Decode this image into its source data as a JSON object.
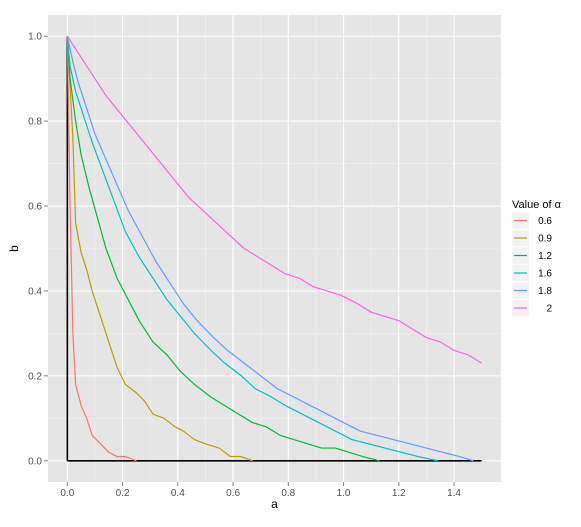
{
  "chart_data": {
    "type": "line",
    "title": "",
    "xlabel": "a",
    "ylabel": "b",
    "xlim": [
      -0.07,
      1.57
    ],
    "ylim": [
      -0.05,
      1.05
    ],
    "x_ticks": [
      0.0,
      0.2,
      0.4,
      0.6,
      0.8,
      1.0,
      1.2,
      1.4
    ],
    "x_tick_labels": [
      "0.0",
      "0.2",
      "0.4",
      "0.6",
      "0.8",
      "1.0",
      "1.2",
      "1.4"
    ],
    "y_ticks": [
      0.0,
      0.2,
      0.4,
      0.6,
      0.8,
      1.0
    ],
    "y_tick_labels": [
      "0.0",
      "0.2",
      "0.4",
      "0.6",
      "0.8",
      "1.0"
    ],
    "grid": true,
    "legend": {
      "title": "Value of α",
      "position": "right"
    },
    "reference_lines": [
      {
        "x": [
          0,
          0
        ],
        "y": [
          0,
          1
        ],
        "color": "#000000"
      },
      {
        "x": [
          0,
          1.5
        ],
        "y": [
          0,
          0
        ],
        "color": "#000000"
      }
    ],
    "series": [
      {
        "name": "0.6",
        "color": "#F8766D",
        "x": [
          0,
          0.01,
          0.02,
          0.03,
          0.05,
          0.07,
          0.09,
          0.12,
          0.15,
          0.18,
          0.21,
          0.25
        ],
        "y": [
          1.0,
          0.6,
          0.3,
          0.18,
          0.13,
          0.1,
          0.06,
          0.04,
          0.02,
          0.01,
          0.01,
          0.0
        ]
      },
      {
        "name": "0.9",
        "color": "#B79F00",
        "x": [
          0,
          0.02,
          0.03,
          0.05,
          0.07,
          0.09,
          0.12,
          0.15,
          0.18,
          0.21,
          0.25,
          0.28,
          0.31,
          0.35,
          0.39,
          0.42,
          0.46,
          0.5,
          0.55,
          0.59,
          0.63,
          0.67
        ],
        "y": [
          1.0,
          0.76,
          0.56,
          0.49,
          0.45,
          0.4,
          0.34,
          0.28,
          0.22,
          0.18,
          0.16,
          0.14,
          0.11,
          0.1,
          0.08,
          0.07,
          0.05,
          0.04,
          0.03,
          0.01,
          0.01,
          0.0
        ]
      },
      {
        "name": "1.2",
        "color": "#00BA38",
        "x": [
          0,
          0.01,
          0.03,
          0.05,
          0.08,
          0.11,
          0.14,
          0.18,
          0.22,
          0.26,
          0.31,
          0.36,
          0.41,
          0.46,
          0.52,
          0.57,
          0.62,
          0.67,
          0.72,
          0.77,
          0.82,
          0.87,
          0.92,
          0.97,
          1.02,
          1.07,
          1.13
        ],
        "y": [
          1.0,
          0.9,
          0.8,
          0.72,
          0.64,
          0.57,
          0.5,
          0.43,
          0.38,
          0.33,
          0.28,
          0.25,
          0.21,
          0.18,
          0.15,
          0.13,
          0.11,
          0.09,
          0.08,
          0.06,
          0.05,
          0.04,
          0.03,
          0.03,
          0.02,
          0.01,
          0.0
        ]
      },
      {
        "name": "1.6",
        "color": "#00BFC4",
        "x": [
          0,
          0.01,
          0.03,
          0.06,
          0.09,
          0.13,
          0.17,
          0.21,
          0.26,
          0.31,
          0.36,
          0.41,
          0.46,
          0.52,
          0.57,
          0.63,
          0.68,
          0.74,
          0.79,
          0.85,
          0.91,
          0.97,
          1.03,
          1.09,
          1.15,
          1.21,
          1.27,
          1.34
        ],
        "y": [
          1.0,
          0.93,
          0.87,
          0.81,
          0.75,
          0.68,
          0.61,
          0.54,
          0.48,
          0.43,
          0.38,
          0.34,
          0.3,
          0.26,
          0.23,
          0.2,
          0.17,
          0.15,
          0.13,
          0.11,
          0.09,
          0.07,
          0.05,
          0.04,
          0.03,
          0.02,
          0.01,
          0.0
        ]
      },
      {
        "name": "1.8",
        "color": "#619CFF",
        "x": [
          0,
          0.02,
          0.04,
          0.07,
          0.1,
          0.14,
          0.18,
          0.22,
          0.27,
          0.32,
          0.37,
          0.42,
          0.47,
          0.53,
          0.58,
          0.64,
          0.7,
          0.76,
          0.82,
          0.88,
          0.94,
          1.0,
          1.06,
          1.12,
          1.18,
          1.24,
          1.3,
          1.36,
          1.42,
          1.47
        ],
        "y": [
          1.0,
          0.94,
          0.89,
          0.83,
          0.77,
          0.71,
          0.65,
          0.59,
          0.53,
          0.47,
          0.42,
          0.37,
          0.33,
          0.29,
          0.26,
          0.23,
          0.2,
          0.17,
          0.15,
          0.13,
          0.11,
          0.09,
          0.07,
          0.06,
          0.05,
          0.04,
          0.03,
          0.02,
          0.01,
          0.0
        ]
      },
      {
        "name": "2",
        "color": "#F564E3",
        "x": [
          0,
          0.05,
          0.1,
          0.14,
          0.19,
          0.24,
          0.29,
          0.34,
          0.39,
          0.44,
          0.49,
          0.54,
          0.59,
          0.64,
          0.69,
          0.74,
          0.79,
          0.84,
          0.89,
          0.94,
          0.99,
          1.05,
          1.1,
          1.15,
          1.2,
          1.25,
          1.3,
          1.35,
          1.4,
          1.45,
          1.5
        ],
        "y": [
          1.0,
          0.95,
          0.9,
          0.86,
          0.82,
          0.78,
          0.74,
          0.7,
          0.66,
          0.62,
          0.59,
          0.56,
          0.53,
          0.5,
          0.48,
          0.46,
          0.44,
          0.43,
          0.41,
          0.4,
          0.39,
          0.37,
          0.35,
          0.34,
          0.33,
          0.31,
          0.29,
          0.28,
          0.26,
          0.25,
          0.23
        ]
      }
    ]
  }
}
